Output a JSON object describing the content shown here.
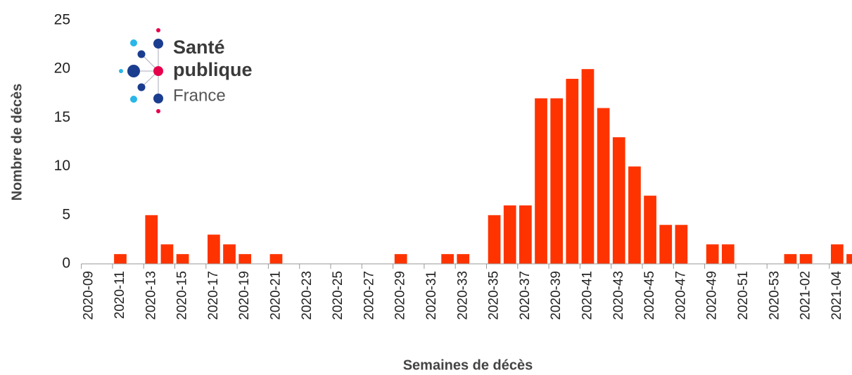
{
  "chart_data": {
    "type": "bar",
    "xlabel": "Semaines de décès",
    "ylabel": "Nombre de décès",
    "logo": {
      "line1": "Santé",
      "line2": "publique",
      "line3": "France"
    },
    "categories": [
      "2020-09",
      null,
      "2020-11",
      null,
      "2020-13",
      null,
      "2020-15",
      null,
      "2020-17",
      null,
      "2020-19",
      null,
      "2020-21",
      null,
      "2020-23",
      null,
      "2020-25",
      null,
      "2020-27",
      null,
      "2020-29",
      null,
      "2020-31",
      null,
      "2020-33",
      null,
      "2020-35",
      null,
      "2020-37",
      null,
      "2020-39",
      null,
      "2020-41",
      null,
      "2020-43",
      null,
      "2020-45",
      null,
      "2020-47",
      null,
      "2020-49",
      null,
      "2020-51",
      null,
      "2020-53",
      null,
      "2021-02",
      null,
      "2021-04",
      null
    ],
    "values": [
      0,
      0,
      1,
      0,
      5,
      2,
      1,
      0,
      3,
      2,
      1,
      0,
      1,
      0,
      0,
      0,
      0,
      0,
      0,
      0,
      1,
      0,
      0,
      1,
      1,
      0,
      5,
      6,
      6,
      17,
      17,
      19,
      20,
      16,
      13,
      10,
      7,
      4,
      4,
      0,
      2,
      2,
      0,
      0,
      0,
      1,
      1,
      0,
      2,
      1
    ],
    "color": "#ff3300",
    "ylim": [
      0,
      25
    ],
    "yticks": [
      0,
      5,
      10,
      15,
      20,
      25
    ],
    "grid": false
  }
}
